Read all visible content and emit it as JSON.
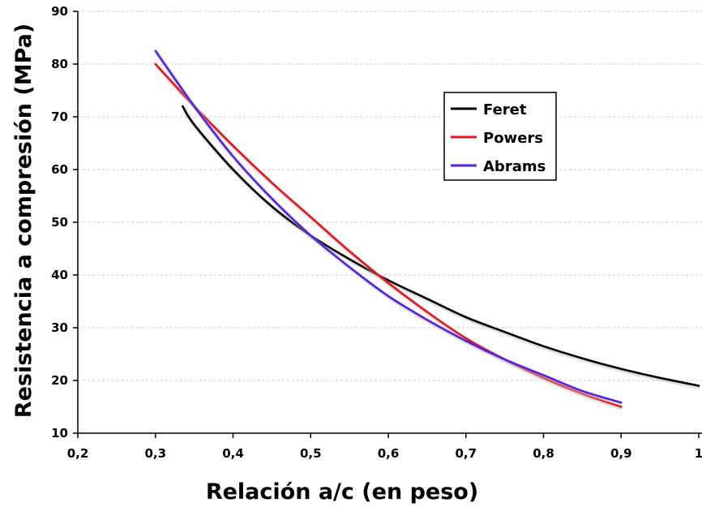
{
  "chart_data": {
    "type": "line",
    "xlabel": "Relación a/c (en peso)",
    "ylabel": "Resistencia a compresión (MPa)",
    "xlim": [
      0.2,
      1.0
    ],
    "ylim": [
      10,
      90
    ],
    "x_ticks": [
      "0,2",
      "0,3",
      "0,4",
      "0,5",
      "0,6",
      "0,7",
      "0,8",
      "0,9",
      "1"
    ],
    "y_ticks": [
      "10",
      "20",
      "30",
      "40",
      "50",
      "60",
      "70",
      "80",
      "90"
    ],
    "grid": "horizontal dashed",
    "legend_position": "top-right",
    "series": [
      {
        "name": "Feret",
        "color": "#000000",
        "x": [
          0.335,
          0.35,
          0.4,
          0.45,
          0.5,
          0.55,
          0.6,
          0.65,
          0.7,
          0.75,
          0.8,
          0.85,
          0.9,
          0.95,
          1.0
        ],
        "y": [
          72,
          68.5,
          60,
          53,
          47.5,
          43,
          39,
          35.5,
          32,
          29.2,
          26.5,
          24.2,
          22.2,
          20.5,
          19
        ]
      },
      {
        "name": "Powers",
        "color": "#e8141c",
        "x": [
          0.3,
          0.35,
          0.4,
          0.45,
          0.5,
          0.55,
          0.6,
          0.65,
          0.7,
          0.75,
          0.8,
          0.85,
          0.9
        ],
        "y": [
          80,
          72,
          64.5,
          57.5,
          51,
          44.5,
          38.5,
          33,
          28,
          24,
          20.5,
          17.5,
          15
        ]
      },
      {
        "name": "Abrams",
        "color": "#5522dd",
        "x": [
          0.3,
          0.35,
          0.4,
          0.45,
          0.5,
          0.55,
          0.6,
          0.65,
          0.7,
          0.75,
          0.8,
          0.85,
          0.9
        ],
        "y": [
          82.5,
          72,
          62.5,
          54.5,
          47.5,
          41.5,
          36,
          31.5,
          27.5,
          24,
          21,
          18,
          15.8
        ]
      }
    ]
  }
}
